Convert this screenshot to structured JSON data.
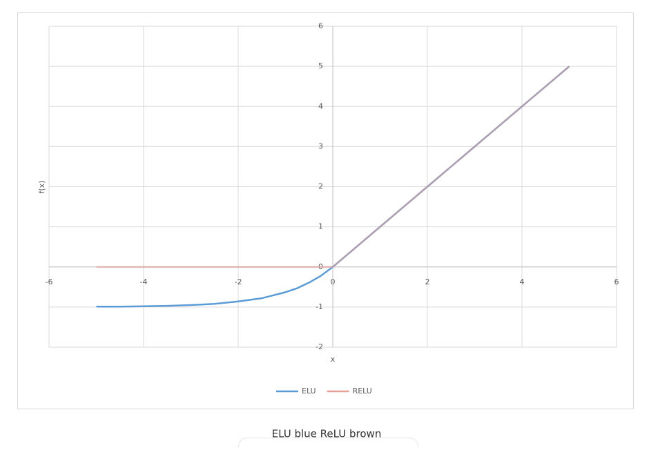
{
  "chart_data": {
    "type": "line",
    "x_label": "x",
    "y_label": "f(x)",
    "x": [
      -5,
      -4.5,
      -4,
      -3.5,
      -3,
      -2.5,
      -2,
      -1.5,
      -1,
      -0.75,
      -0.5,
      -0.25,
      0,
      0.5,
      1,
      1.5,
      2,
      2.5,
      3,
      3.5,
      4,
      4.5,
      5
    ],
    "series": [
      {
        "name": "ELU",
        "color": "#5b9bd5",
        "values": [
          -0.99,
          -0.99,
          -0.98,
          -0.97,
          -0.95,
          -0.92,
          -0.86,
          -0.78,
          -0.63,
          -0.53,
          -0.39,
          -0.22,
          0,
          0.5,
          1,
          1.5,
          2,
          2.5,
          3,
          3.5,
          4,
          4.5,
          5
        ]
      },
      {
        "name": "RELU",
        "color": "#e6a09a",
        "values": [
          0,
          0,
          0,
          0,
          0,
          0,
          0,
          0,
          0,
          0,
          0,
          0,
          0,
          0.5,
          1,
          1.5,
          2,
          2.5,
          3,
          3.5,
          4,
          4.5,
          5
        ]
      }
    ],
    "xlim": [
      -6,
      6
    ],
    "xticks": [
      -6,
      -4,
      -2,
      0,
      2,
      4,
      6
    ],
    "ylim": [
      -2,
      6
    ],
    "yticks": [
      -2,
      -1,
      0,
      1,
      2,
      3,
      4,
      5,
      6
    ],
    "grid": true,
    "legend": "bottom"
  },
  "caption": "ELU blue ReLU brown"
}
